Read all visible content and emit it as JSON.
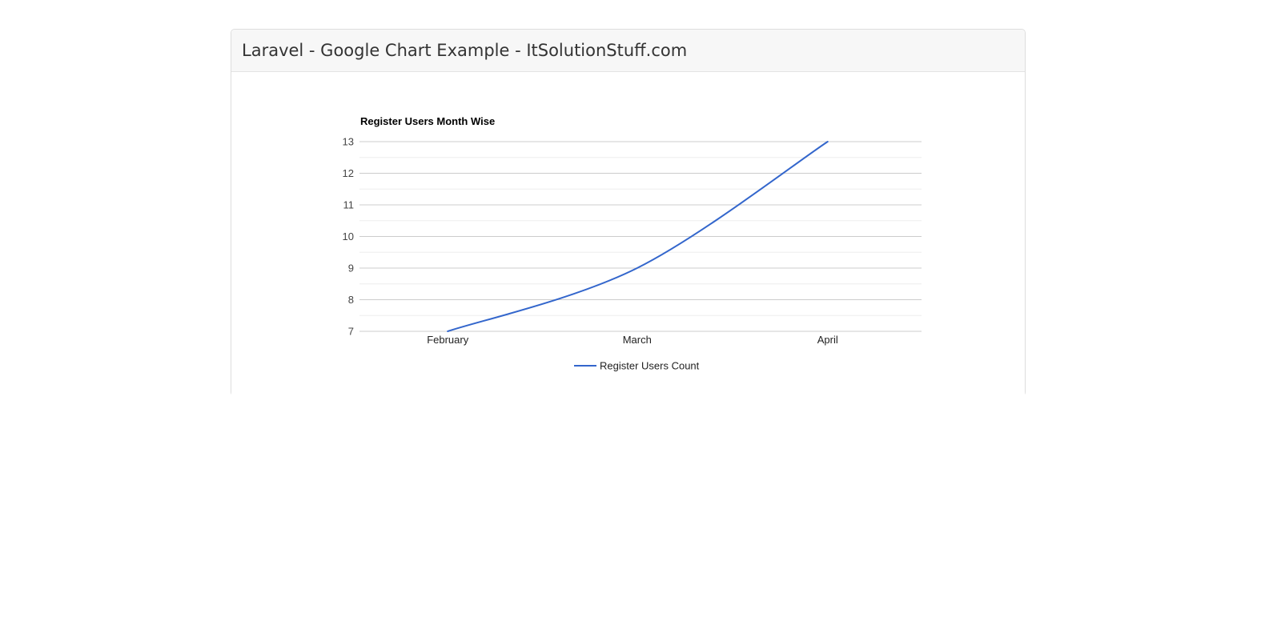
{
  "card": {
    "title": "Laravel - Google Chart Example - ItSolutionStuff.com"
  },
  "chart_data": {
    "type": "line",
    "title": "Register Users Month Wise",
    "categories": [
      "February",
      "March",
      "April"
    ],
    "series": [
      {
        "name": "Register Users Count",
        "values": [
          7,
          9,
          13
        ],
        "color": "#3366cc"
      }
    ],
    "xlabel": "",
    "ylabel": "",
    "ylim": [
      7,
      13
    ],
    "y_major_ticks": [
      13,
      12,
      11,
      10,
      9,
      8,
      7
    ],
    "y_minor_step": 0.5,
    "grid": "on",
    "curve": "smooth",
    "legend_position": "bottom",
    "legend_label": "Register Users Count",
    "colors": {
      "series_line": "#3366cc",
      "major_gridline": "#cccccc",
      "minor_gridline": "#ededed",
      "y_tick_text": "#444444",
      "x_tick_text": "#222222",
      "title_text": "#000000",
      "legend_text": "#222222"
    }
  }
}
